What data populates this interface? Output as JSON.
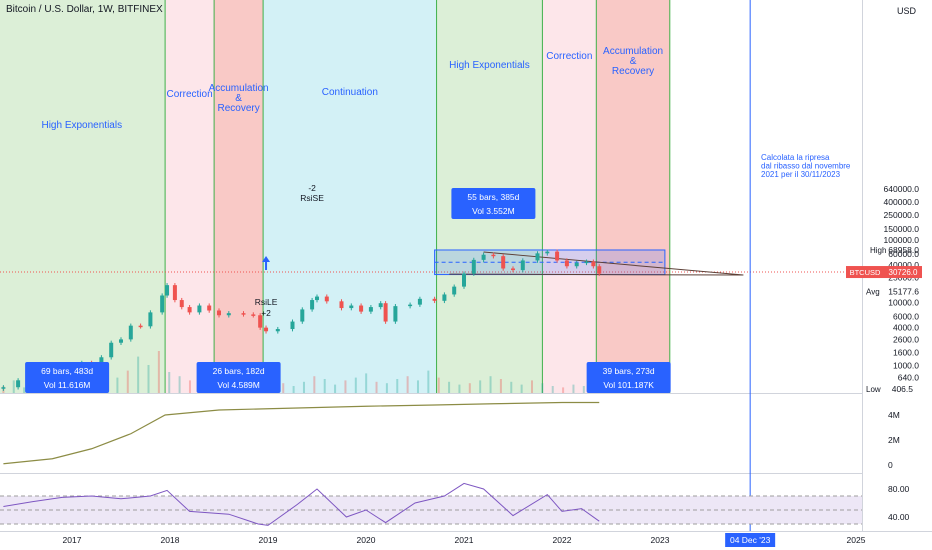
{
  "title": "Bitcoin / U.S. Dollar, 1W, BITFINEX",
  "currency": "USD",
  "colors": {
    "phase_blue": "#d3f1f6",
    "phase_green": "#dcefd7",
    "phase_pink": "#fde6ea",
    "phase_red": "#f9c9c6",
    "green_line": "#3fb149",
    "up": "#26a69a",
    "down": "#ef5350",
    "label": "#2962ff",
    "obv": "#8c8c45",
    "rsi": "#7e57c2",
    "rsi_band": "#ede7f6"
  },
  "phases": [
    {
      "label": "High Exponentials",
      "from": 2016.25,
      "to": 2017.95,
      "color": "phase_green"
    },
    {
      "label": "Correction",
      "from": 2017.95,
      "to": 2018.45,
      "color": "phase_pink"
    },
    {
      "label": "Accumulation & Recovery",
      "from": 2018.45,
      "to": 2018.95,
      "color": "phase_red"
    },
    {
      "label": "Continuation",
      "from": 2018.95,
      "to": 2020.72,
      "color": "phase_blue"
    },
    {
      "label": "High Exponentials",
      "from": 2020.72,
      "to": 2021.8,
      "color": "phase_green"
    },
    {
      "label": "Correction",
      "from": 2021.8,
      "to": 2022.35,
      "color": "phase_pink"
    },
    {
      "label": "Accumulation & Recovery",
      "from": 2022.35,
      "to": 2023.1,
      "color": "phase_red"
    }
  ],
  "measures": [
    {
      "line1": "69 bars, 483d",
      "line2": "Vol 11.616M",
      "x": 2016.95
    },
    {
      "line1": "26 bars, 182d",
      "line2": "Vol 4.589M",
      "x": 2018.7
    },
    {
      "line1": "55 bars, 385d",
      "line2": "Vol 3.552M",
      "x": 2021.3
    },
    {
      "line1": "39 bars, 273d",
      "line2": "Vol 101.187K",
      "x": 2022.68
    }
  ],
  "annotations": {
    "rsi_se_line1": "-2",
    "rsi_se_line2": "RsiSE",
    "rsi_le_line1": "RsiLE",
    "rsi_le_line2": "+2",
    "note_line1": "Calcolata la ripresa",
    "note_line2": "dal ribasso dal novembre",
    "note_line3": "2021 per il 30/11/2023"
  },
  "price_axis": {
    "labels": [
      "640000.0",
      "400000.0",
      "250000.0",
      "150000.0",
      "100000.0",
      "60000.0",
      "40000.0",
      "25000.0",
      "10000.0",
      "6000.0",
      "4000.0",
      "2600.0",
      "1600.0",
      "1000.0",
      "640.0"
    ],
    "values": [
      640000,
      400000,
      250000,
      150000,
      100000,
      60000,
      40000,
      25000,
      10000,
      6000,
      4000,
      2600,
      1600,
      1000,
      640
    ],
    "high_label": "High",
    "high_value": "68958.0",
    "symbol_label": "BTCUSD",
    "last_value": "30726.0",
    "avg_label": "Avg",
    "avg_value": "15177.6",
    "low_label": "Low",
    "low_value": "406.5"
  },
  "obv_axis": {
    "labels": [
      "4M",
      "2M",
      "0"
    ],
    "values": [
      4,
      2,
      0
    ]
  },
  "rsi_axis": {
    "labels": [
      "80.00",
      "40.00"
    ],
    "values": [
      80,
      40
    ]
  },
  "time_axis": {
    "labels": [
      "2017",
      "2018",
      "2019",
      "2020",
      "2021",
      "2022",
      "2023",
      "2025"
    ],
    "values": [
      2017,
      2018,
      2019,
      2020,
      2021,
      2022,
      2023,
      2025
    ],
    "cursor_label": "04 Dec '23",
    "cursor_value": 2023.92
  },
  "chart_data": {
    "type": "candlestick",
    "title": "Bitcoin / U.S. Dollar, 1W, BITFINEX",
    "y_scale": "log",
    "ylim": [
      400,
      640000
    ],
    "series": [
      {
        "name": "BTCUSD",
        "points": [
          [
            2016.3,
            450
          ],
          [
            2016.45,
            580
          ],
          [
            2016.55,
            650
          ],
          [
            2016.7,
            610
          ],
          [
            2016.85,
            700
          ],
          [
            2017.0,
            950
          ],
          [
            2017.1,
            1100
          ],
          [
            2017.2,
            1000
          ],
          [
            2017.3,
            1350
          ],
          [
            2017.4,
            2300
          ],
          [
            2017.5,
            2600
          ],
          [
            2017.6,
            4300
          ],
          [
            2017.7,
            4200
          ],
          [
            2017.8,
            7000
          ],
          [
            2017.92,
            13000
          ],
          [
            2017.97,
            19000
          ],
          [
            2018.05,
            11000
          ],
          [
            2018.12,
            8500
          ],
          [
            2018.2,
            7000
          ],
          [
            2018.3,
            9000
          ],
          [
            2018.4,
            7500
          ],
          [
            2018.5,
            6300
          ],
          [
            2018.6,
            6800
          ],
          [
            2018.75,
            6500
          ],
          [
            2018.85,
            6300
          ],
          [
            2018.92,
            4000
          ],
          [
            2018.98,
            3500
          ],
          [
            2019.1,
            3800
          ],
          [
            2019.25,
            5000
          ],
          [
            2019.35,
            7800
          ],
          [
            2019.45,
            11000
          ],
          [
            2019.5,
            12500
          ],
          [
            2019.6,
            10500
          ],
          [
            2019.75,
            8200
          ],
          [
            2019.85,
            9000
          ],
          [
            2019.95,
            7200
          ],
          [
            2020.05,
            8500
          ],
          [
            2020.15,
            9800
          ],
          [
            2020.2,
            5000
          ],
          [
            2020.3,
            8800
          ],
          [
            2020.45,
            9300
          ],
          [
            2020.55,
            11500
          ],
          [
            2020.7,
            10700
          ],
          [
            2020.8,
            13500
          ],
          [
            2020.9,
            18000
          ],
          [
            2021.0,
            29000
          ],
          [
            2021.1,
            48000
          ],
          [
            2021.2,
            58000
          ],
          [
            2021.3,
            55000
          ],
          [
            2021.4,
            35000
          ],
          [
            2021.5,
            33000
          ],
          [
            2021.6,
            47000
          ],
          [
            2021.75,
            61000
          ],
          [
            2021.85,
            65000
          ],
          [
            2021.95,
            47000
          ],
          [
            2022.05,
            38000
          ],
          [
            2022.15,
            43000
          ],
          [
            2022.25,
            45000
          ],
          [
            2022.32,
            38000
          ],
          [
            2022.38,
            29000
          ]
        ]
      },
      {
        "name": "OBV",
        "unit": "M",
        "points": [
          [
            2016.3,
            0.1
          ],
          [
            2016.8,
            0.5
          ],
          [
            2017.2,
            1.3
          ],
          [
            2017.6,
            2.5
          ],
          [
            2017.95,
            4.0
          ],
          [
            2018.5,
            4.4
          ],
          [
            2019.0,
            4.5
          ],
          [
            2019.5,
            4.6
          ],
          [
            2020.0,
            4.7
          ],
          [
            2020.7,
            4.8
          ],
          [
            2021.3,
            4.9
          ],
          [
            2022.0,
            5.0
          ],
          [
            2022.38,
            5.0
          ]
        ]
      },
      {
        "name": "RSI",
        "points": [
          [
            2016.3,
            55
          ],
          [
            2016.6,
            62
          ],
          [
            2016.9,
            68
          ],
          [
            2017.2,
            70
          ],
          [
            2017.5,
            66
          ],
          [
            2017.8,
            70
          ],
          [
            2017.97,
            78
          ],
          [
            2018.2,
            48
          ],
          [
            2018.6,
            44
          ],
          [
            2018.9,
            30
          ],
          [
            2019.0,
            28
          ],
          [
            2019.3,
            58
          ],
          [
            2019.5,
            80
          ],
          [
            2019.8,
            40
          ],
          [
            2020.0,
            50
          ],
          [
            2020.2,
            32
          ],
          [
            2020.5,
            60
          ],
          [
            2020.8,
            70
          ],
          [
            2021.0,
            88
          ],
          [
            2021.2,
            80
          ],
          [
            2021.5,
            42
          ],
          [
            2021.85,
            72
          ],
          [
            2022.0,
            48
          ],
          [
            2022.2,
            52
          ],
          [
            2022.38,
            34
          ]
        ]
      }
    ]
  }
}
